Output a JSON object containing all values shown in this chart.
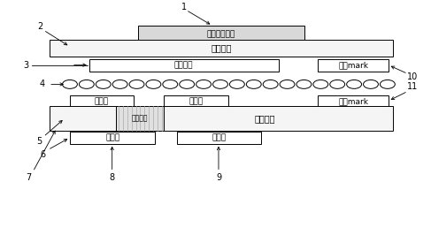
{
  "bg_color": "#ffffff",
  "layer1_patch_text": "天线辐射贴片",
  "layer2_glass_text": "玻璃基板",
  "layer3_ground_text": "接地信号",
  "layer3_mark_text": "对位mark",
  "layer5_dielectric_text": "介质基板",
  "layer5_metal_text": "金属打孔",
  "layer6_ground_text": "接地线",
  "layer6_micro_text": "微带线",
  "phase_text1": "移相器",
  "phase_text2": "移相器",
  "mark_text2": "对位mark"
}
